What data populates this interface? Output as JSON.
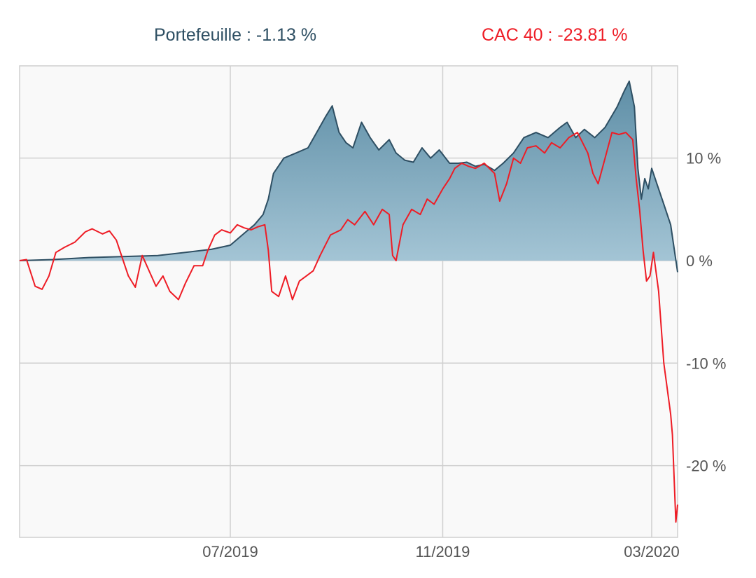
{
  "legend": [
    {
      "text": "Portefeuille : -1.13 %",
      "color": "#2e4f63"
    },
    {
      "text": "CAC 40 : -23.81 %",
      "color": "#ee1c25"
    }
  ],
  "colors": {
    "portfolio_line": "#2e4f63",
    "portfolio_fill_top": "#5e8ea6",
    "portfolio_fill_bottom": "#a8c8d8",
    "cac_line": "#ee1c25",
    "plot_background": "#f9f9f9",
    "grid": "#cfcfcf"
  },
  "chart_data": {
    "type": "area",
    "title": "",
    "xlabel": "",
    "ylabel": "",
    "x_range": [
      "2019-03-01",
      "2020-03-16"
    ],
    "xlim": [
      "2019-03-01",
      "2020-03-16"
    ],
    "ylim": [
      -27,
      19
    ],
    "y_ticks": [
      {
        "value": 10,
        "label": "10 %"
      },
      {
        "value": 0,
        "label": "0 %"
      },
      {
        "value": -10,
        "label": "-10 %"
      },
      {
        "value": -20,
        "label": "-20 %"
      }
    ],
    "x_ticks": [
      {
        "value": "2019-07-01",
        "label": "07/2019"
      },
      {
        "value": "2019-11-01",
        "label": "11/2019"
      },
      {
        "value": "2020-03-01",
        "label": "03/2020"
      }
    ],
    "grid": true,
    "legend_position": "top",
    "series": [
      {
        "name": "Portefeuille",
        "style": "area",
        "points": [
          [
            "2019-03-01",
            0.0
          ],
          [
            "2019-03-20",
            0.1
          ],
          [
            "2019-04-10",
            0.3
          ],
          [
            "2019-05-01",
            0.4
          ],
          [
            "2019-05-20",
            0.5
          ],
          [
            "2019-06-05",
            0.8
          ],
          [
            "2019-06-20",
            1.1
          ],
          [
            "2019-07-01",
            1.5
          ],
          [
            "2019-07-10",
            2.8
          ],
          [
            "2019-07-15",
            3.5
          ],
          [
            "2019-07-20",
            4.5
          ],
          [
            "2019-07-23",
            6.0
          ],
          [
            "2019-07-26",
            8.5
          ],
          [
            "2019-08-01",
            10.0
          ],
          [
            "2019-08-08",
            10.5
          ],
          [
            "2019-08-15",
            11.0
          ],
          [
            "2019-08-20",
            12.5
          ],
          [
            "2019-08-25",
            14.0
          ],
          [
            "2019-08-29",
            15.1
          ],
          [
            "2019-09-02",
            12.5
          ],
          [
            "2019-09-06",
            11.5
          ],
          [
            "2019-09-10",
            11.0
          ],
          [
            "2019-09-15",
            13.5
          ],
          [
            "2019-09-20",
            12.0
          ],
          [
            "2019-09-25",
            10.8
          ],
          [
            "2019-10-01",
            11.8
          ],
          [
            "2019-10-05",
            10.5
          ],
          [
            "2019-10-10",
            9.8
          ],
          [
            "2019-10-15",
            9.6
          ],
          [
            "2019-10-20",
            11.0
          ],
          [
            "2019-10-25",
            10.0
          ],
          [
            "2019-10-30",
            10.8
          ],
          [
            "2019-11-05",
            9.5
          ],
          [
            "2019-11-10",
            9.5
          ],
          [
            "2019-11-15",
            9.6
          ],
          [
            "2019-11-20",
            9.2
          ],
          [
            "2019-11-25",
            9.4
          ],
          [
            "2019-12-01",
            8.8
          ],
          [
            "2019-12-06",
            9.5
          ],
          [
            "2019-12-12",
            10.5
          ],
          [
            "2019-12-18",
            12.0
          ],
          [
            "2019-12-25",
            12.5
          ],
          [
            "2020-01-01",
            12.0
          ],
          [
            "2020-01-08",
            13.0
          ],
          [
            "2020-01-12",
            13.5
          ],
          [
            "2020-01-17",
            12.0
          ],
          [
            "2020-01-22",
            12.8
          ],
          [
            "2020-01-28",
            12.0
          ],
          [
            "2020-02-03",
            13.0
          ],
          [
            "2020-02-10",
            15.0
          ],
          [
            "2020-02-14",
            16.5
          ],
          [
            "2020-02-17",
            17.5
          ],
          [
            "2020-02-20",
            15.0
          ],
          [
            "2020-02-22",
            9.0
          ],
          [
            "2020-02-24",
            6.0
          ],
          [
            "2020-02-26",
            8.0
          ],
          [
            "2020-02-28",
            7.0
          ],
          [
            "2020-03-01",
            9.0
          ],
          [
            "2020-03-04",
            7.5
          ],
          [
            "2020-03-08",
            5.5
          ],
          [
            "2020-03-12",
            3.5
          ],
          [
            "2020-03-16",
            -1.13
          ]
        ]
      },
      {
        "name": "CAC 40",
        "style": "line",
        "points": [
          [
            "2019-03-01",
            0.0
          ],
          [
            "2019-03-05",
            0.1
          ],
          [
            "2019-03-10",
            -2.5
          ],
          [
            "2019-03-14",
            -2.8
          ],
          [
            "2019-03-18",
            -1.5
          ],
          [
            "2019-03-22",
            0.8
          ],
          [
            "2019-03-27",
            1.3
          ],
          [
            "2019-04-02",
            1.8
          ],
          [
            "2019-04-08",
            2.8
          ],
          [
            "2019-04-12",
            3.1
          ],
          [
            "2019-04-18",
            2.6
          ],
          [
            "2019-04-22",
            2.9
          ],
          [
            "2019-04-26",
            2.0
          ],
          [
            "2019-04-30",
            0.0
          ],
          [
            "2019-05-03",
            -1.5
          ],
          [
            "2019-05-07",
            -2.6
          ],
          [
            "2019-05-11",
            0.5
          ],
          [
            "2019-05-15",
            -1.0
          ],
          [
            "2019-05-19",
            -2.5
          ],
          [
            "2019-05-23",
            -1.5
          ],
          [
            "2019-05-27",
            -3.0
          ],
          [
            "2019-06-01",
            -3.8
          ],
          [
            "2019-06-05",
            -2.2
          ],
          [
            "2019-06-10",
            -0.5
          ],
          [
            "2019-06-15",
            -0.5
          ],
          [
            "2019-06-18",
            1.0
          ],
          [
            "2019-06-22",
            2.5
          ],
          [
            "2019-06-26",
            3.0
          ],
          [
            "2019-07-01",
            2.7
          ],
          [
            "2019-07-05",
            3.5
          ],
          [
            "2019-07-09",
            3.2
          ],
          [
            "2019-07-13",
            3.0
          ],
          [
            "2019-07-17",
            3.3
          ],
          [
            "2019-07-21",
            3.5
          ],
          [
            "2019-07-23",
            1.0
          ],
          [
            "2019-07-25",
            -3.0
          ],
          [
            "2019-07-29",
            -3.5
          ],
          [
            "2019-08-02",
            -1.5
          ],
          [
            "2019-08-06",
            -3.8
          ],
          [
            "2019-08-10",
            -2.0
          ],
          [
            "2019-08-14",
            -1.5
          ],
          [
            "2019-08-18",
            -1.0
          ],
          [
            "2019-08-22",
            0.5
          ],
          [
            "2019-08-28",
            2.5
          ],
          [
            "2019-09-03",
            3.0
          ],
          [
            "2019-09-07",
            4.0
          ],
          [
            "2019-09-11",
            3.5
          ],
          [
            "2019-09-17",
            4.8
          ],
          [
            "2019-09-22",
            3.5
          ],
          [
            "2019-09-27",
            5.0
          ],
          [
            "2019-10-01",
            4.5
          ],
          [
            "2019-10-03",
            0.5
          ],
          [
            "2019-10-05",
            0.0
          ],
          [
            "2019-10-09",
            3.5
          ],
          [
            "2019-10-14",
            5.0
          ],
          [
            "2019-10-19",
            4.5
          ],
          [
            "2019-10-23",
            6.0
          ],
          [
            "2019-10-27",
            5.5
          ],
          [
            "2019-11-01",
            7.0
          ],
          [
            "2019-11-05",
            8.0
          ],
          [
            "2019-11-08",
            9.0
          ],
          [
            "2019-11-12",
            9.5
          ],
          [
            "2019-11-16",
            9.2
          ],
          [
            "2019-11-20",
            9.0
          ],
          [
            "2019-11-25",
            9.5
          ],
          [
            "2019-12-01",
            8.5
          ],
          [
            "2019-12-04",
            5.8
          ],
          [
            "2019-12-08",
            7.5
          ],
          [
            "2019-12-12",
            10.0
          ],
          [
            "2019-12-16",
            9.5
          ],
          [
            "2019-12-20",
            11.0
          ],
          [
            "2019-12-25",
            11.2
          ],
          [
            "2019-12-30",
            10.5
          ],
          [
            "2020-01-03",
            11.5
          ],
          [
            "2020-01-08",
            11.0
          ],
          [
            "2020-01-13",
            12.0
          ],
          [
            "2020-01-18",
            12.5
          ],
          [
            "2020-01-21",
            11.5
          ],
          [
            "2020-01-24",
            10.5
          ],
          [
            "2020-01-27",
            8.5
          ],
          [
            "2020-01-30",
            7.5
          ],
          [
            "2020-02-03",
            10.0
          ],
          [
            "2020-02-07",
            12.5
          ],
          [
            "2020-02-11",
            12.3
          ],
          [
            "2020-02-15",
            12.5
          ],
          [
            "2020-02-19",
            11.8
          ],
          [
            "2020-02-21",
            8.0
          ],
          [
            "2020-02-23",
            5.0
          ],
          [
            "2020-02-25",
            1.0
          ],
          [
            "2020-02-27",
            -2.0
          ],
          [
            "2020-02-29",
            -1.5
          ],
          [
            "2020-03-02",
            0.8
          ],
          [
            "2020-03-05",
            -3.0
          ],
          [
            "2020-03-08",
            -10.0
          ],
          [
            "2020-03-12",
            -15.0
          ],
          [
            "2020-03-13",
            -17.0
          ],
          [
            "2020-03-15",
            -25.5
          ],
          [
            "2020-03-16",
            -23.81
          ]
        ]
      }
    ]
  }
}
